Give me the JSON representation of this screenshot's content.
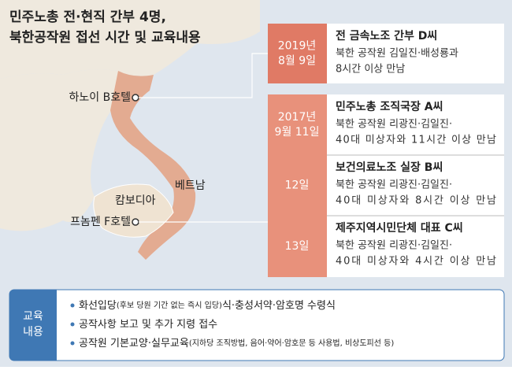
{
  "title": [
    "민주노총 전·현직 간부 4명,",
    "북한공작원 접선 시간 및 교육내용"
  ],
  "map": {
    "labels": [
      "하노이 B호텔",
      "베트남",
      "캄보디아",
      "프놈펜 F호텔"
    ]
  },
  "events": [
    {
      "date": [
        "2019년",
        "8월 9일"
      ],
      "title": "전 금속노조 간부 D씨",
      "lines": [
        "북한 공작원 김일진·배성룡과",
        "8시간 이상 만남"
      ]
    },
    {
      "date": [
        "2017년",
        "9월 11일"
      ],
      "title": "민주노총 조직국장 A씨",
      "lines": [
        "북한 공작원 리광진·김일진·",
        "40대 미상자와 11시간 이상 만남"
      ]
    },
    {
      "date": [
        "12일"
      ],
      "title": "보건의료노조 실장 B씨",
      "lines": [
        "북한 공작원 리광진·김일진·",
        "40대 미상자와 8시간 이상 만남"
      ]
    },
    {
      "date": [
        "13일"
      ],
      "title": "제주지역시민단체 대표 C씨",
      "lines": [
        "북한 공작원 리광진·김일진·",
        "40대 미상자와 4시간 이상 만남"
      ]
    }
  ],
  "education": {
    "label": [
      "교육",
      "내용"
    ],
    "items": [
      [
        "화선입당",
        "(후보 당원 기간 없는 즉시 입당)",
        "식·충성서약·암호명 수령식"
      ],
      [
        "공작사항 보고 및 추가 지령 접수"
      ],
      [
        "공작원 기본교양·실무교육",
        "(지하당 조직방법, 음어·약어·암호문 등 사용법, 비상도피선 등)"
      ]
    ]
  }
}
